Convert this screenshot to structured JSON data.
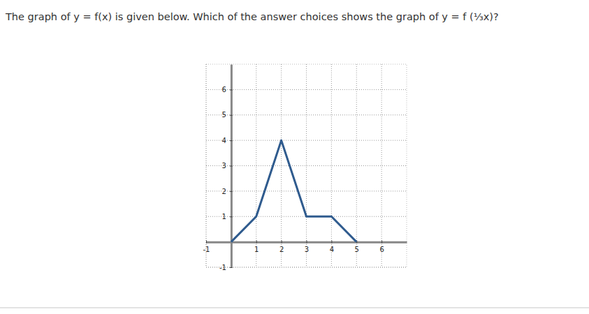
{
  "chart_data": {
    "type": "line",
    "title": "The graph of y = f(x) is given below. Which of the answer choices shows the graph of y = f (⅓x)?",
    "x": [
      0,
      1,
      2,
      3,
      4,
      5
    ],
    "values": [
      0,
      1,
      4,
      1,
      1,
      0
    ],
    "color": "#2f5b8e",
    "xlim": [
      -1,
      7
    ],
    "ylim": [
      -1,
      7
    ],
    "xticks": [
      -1,
      1,
      2,
      3,
      4,
      5,
      6
    ],
    "yticks": [
      -1,
      1,
      2,
      3,
      4,
      5,
      6
    ],
    "grid": true
  }
}
